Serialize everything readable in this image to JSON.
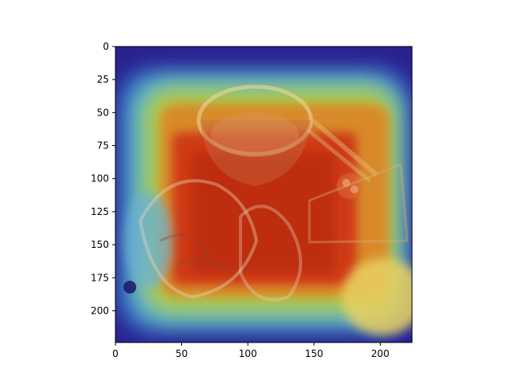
{
  "chart_data": {
    "type": "heatmap",
    "title": "",
    "xlabel": "",
    "ylabel": "",
    "xlim": [
      0,
      224
    ],
    "ylim": [
      224,
      0
    ],
    "x_ticks": [
      0,
      50,
      100,
      150,
      200
    ],
    "y_ticks": [
      0,
      25,
      50,
      75,
      100,
      125,
      150,
      175,
      200
    ],
    "x_tick_labels": [
      "0",
      "50",
      "100",
      "150",
      "200"
    ],
    "y_tick_labels": [
      "0",
      "25",
      "50",
      "75",
      "100",
      "125",
      "150",
      "175",
      "200"
    ],
    "colormap": "jet",
    "overlay": "photo of a food plate with a bowl and chopsticks",
    "grid": false,
    "colors": {
      "frame": "#000000",
      "low": "#2b1e9a",
      "mid": "#6fd0c8",
      "high": "#d23a16"
    }
  }
}
